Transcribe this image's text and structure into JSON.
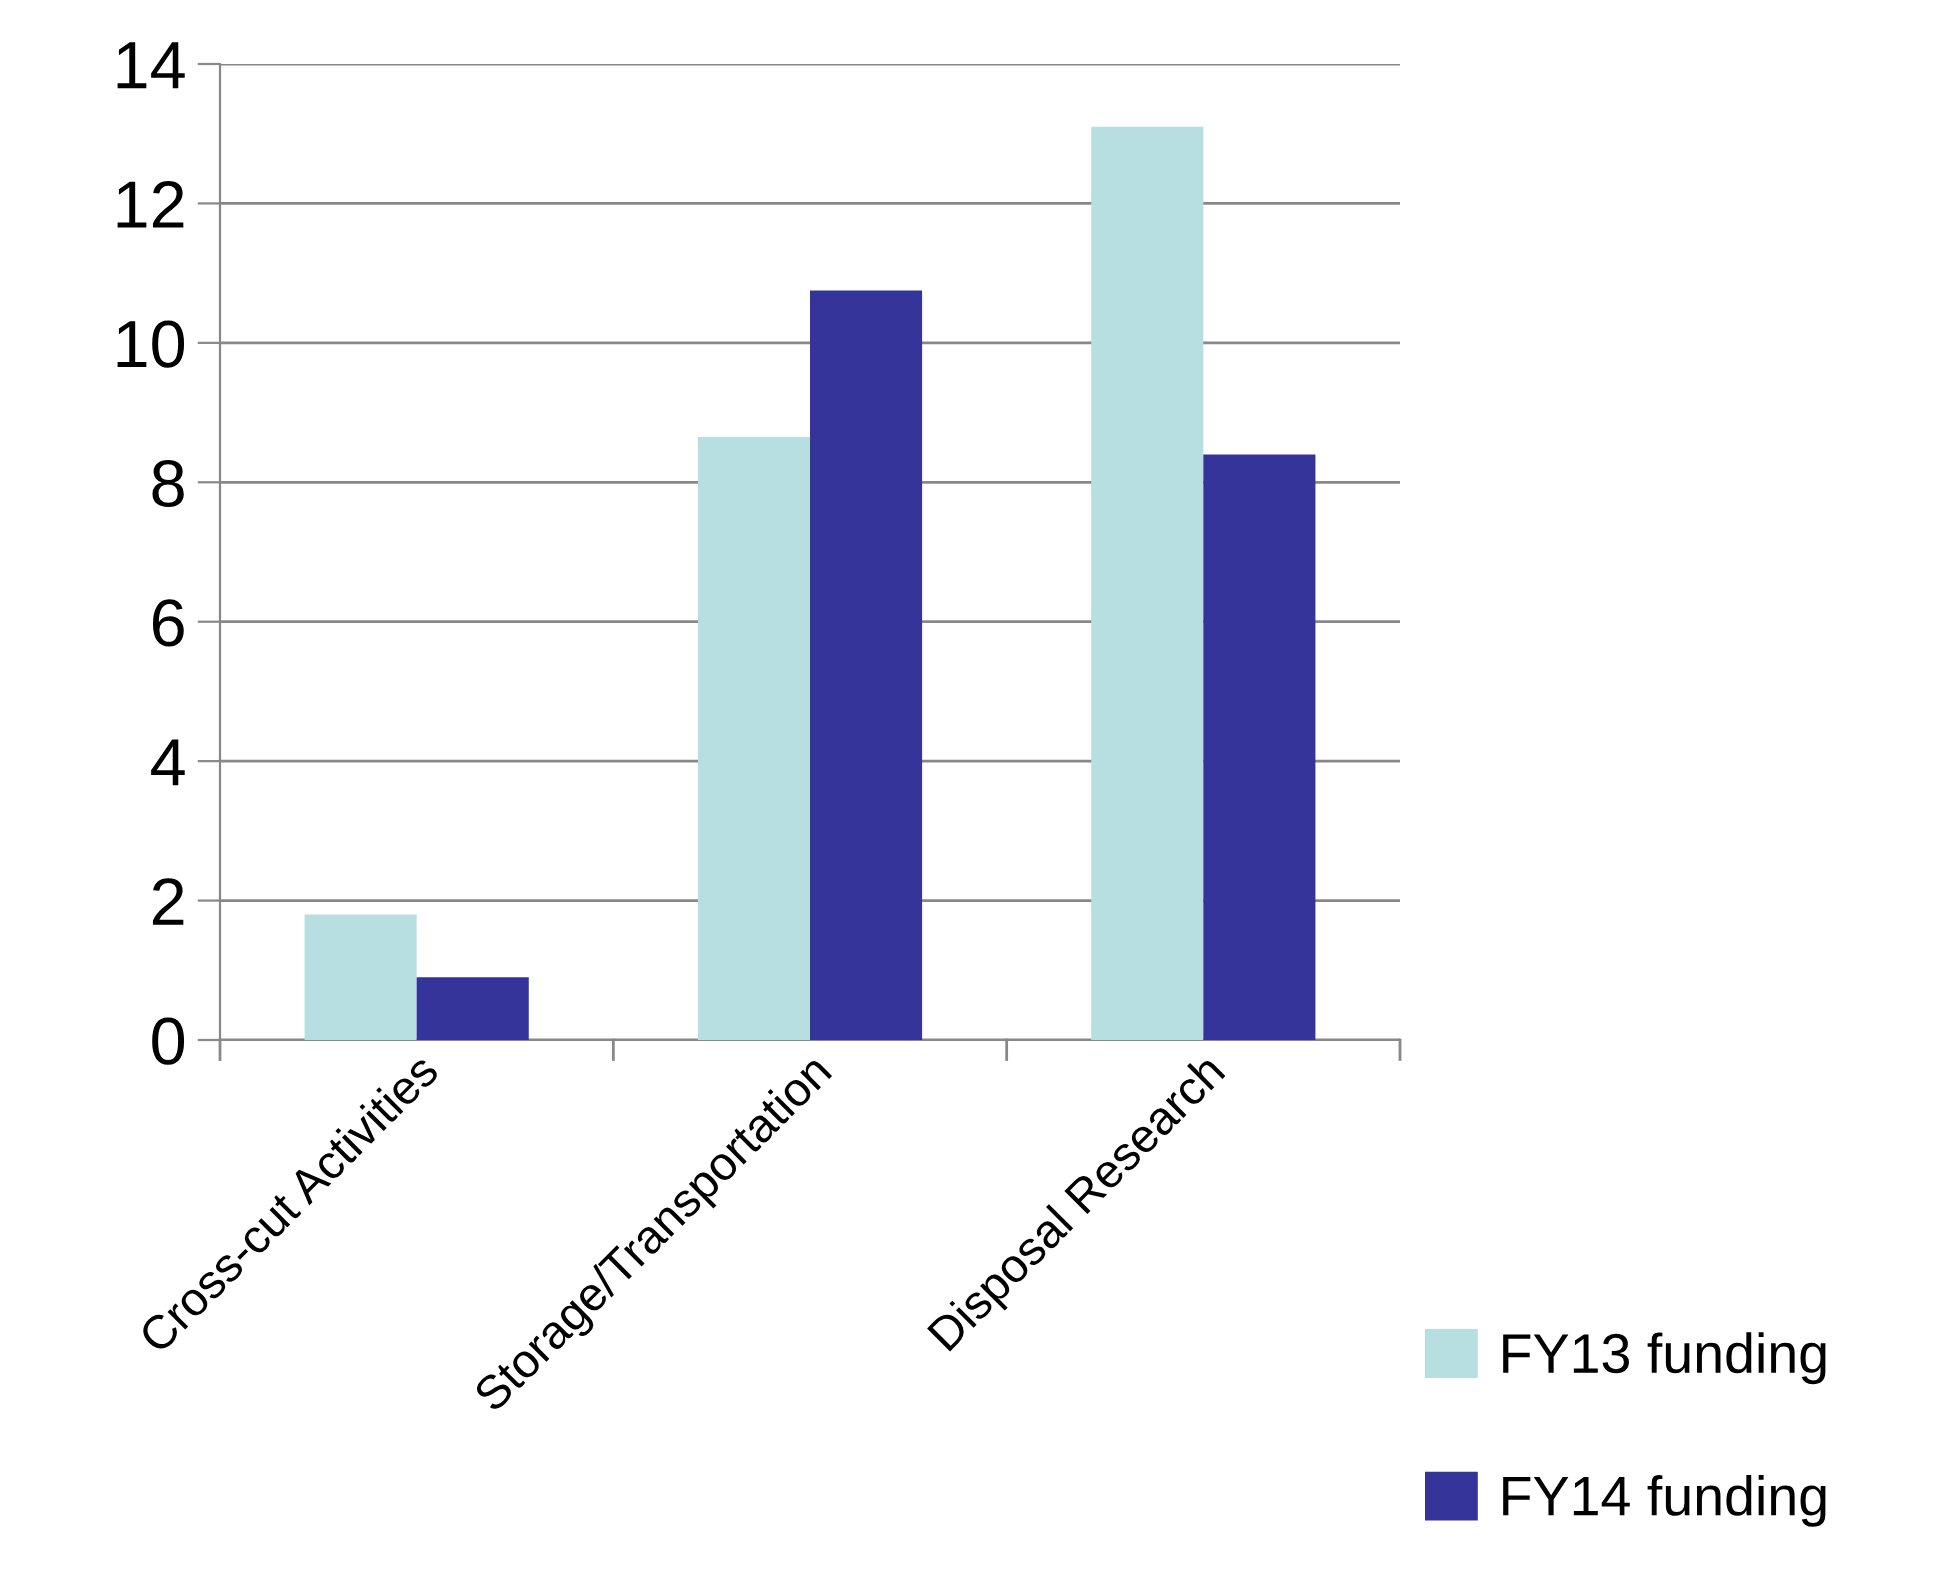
{
  "chart_data": {
    "type": "bar",
    "categories": [
      "Cross-cut Activities",
      "Storage/Transportation",
      "Disposal Research"
    ],
    "series": [
      {
        "name": "FY13 funding",
        "color": "#b7dfe2",
        "values": [
          1.8,
          8.65,
          13.1
        ]
      },
      {
        "name": "FY14 funding",
        "color": "#35349a",
        "values": [
          0.9,
          10.75,
          8.4
        ]
      }
    ],
    "ylim": [
      0,
      14
    ],
    "yticks": [
      0,
      2,
      4,
      6,
      8,
      10,
      12,
      14
    ],
    "grid": "y",
    "legend": "bottom right"
  }
}
